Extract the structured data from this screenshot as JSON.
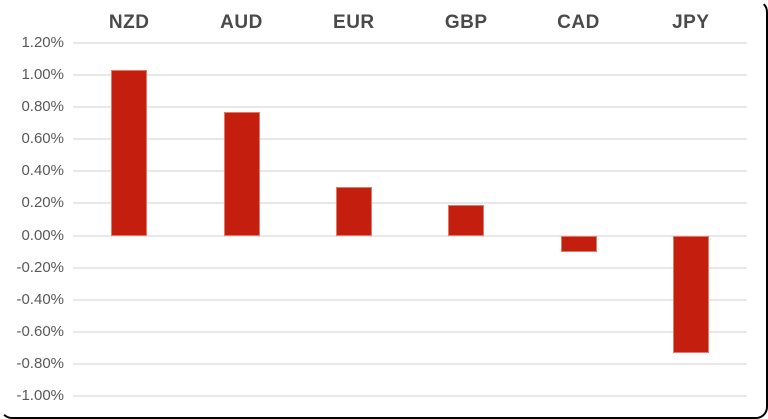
{
  "frame": {
    "background": "#ffffff",
    "border_color": "#000000"
  },
  "chart_data": {
    "type": "bar",
    "title": "",
    "xlabel": "",
    "ylabel": "",
    "categories": [
      "NZD",
      "AUD",
      "EUR",
      "GBP",
      "CAD",
      "JPY"
    ],
    "values": [
      1.03,
      0.77,
      0.3,
      0.19,
      -0.1,
      -0.73
    ],
    "value_unit": "%",
    "ylim": [
      -1.0,
      1.2
    ],
    "y_ticks": [
      "1.20%",
      "1.00%",
      "0.80%",
      "0.60%",
      "0.40%",
      "0.20%",
      "0.00%",
      "-0.20%",
      "-0.40%",
      "-0.60%",
      "-0.80%",
      "-1.00%"
    ],
    "y_tick_values": [
      1.2,
      1.0,
      0.8,
      0.6,
      0.4,
      0.2,
      0.0,
      -0.2,
      -0.4,
      -0.6,
      -0.8,
      -1.0
    ],
    "grid": true,
    "legend_position": "none",
    "category_labels_position": "top",
    "bar_color": "#c31e0e",
    "bar_edge_color": "#e07a66",
    "gridline_color": "#e8e8e8",
    "category_label_color": "#4a4a4a",
    "tick_label_color": "#595959"
  }
}
